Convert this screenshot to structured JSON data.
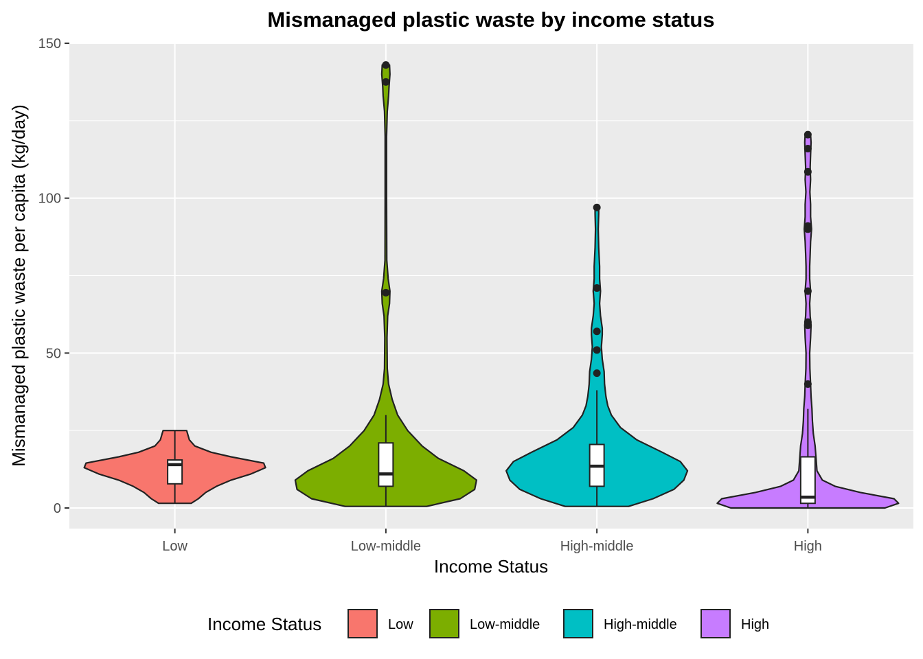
{
  "chart_data": {
    "type": "violin",
    "title": "Mismanaged plastic waste by income status",
    "xlabel": "Income Status",
    "ylabel": "Mismanaged plastic waste per capita (kg/day)",
    "ylim": [
      -6,
      150
    ],
    "yticks": [
      0,
      50,
      100,
      150
    ],
    "grid": true,
    "legend_position": "bottom",
    "legend_title": "Income Status",
    "categories": [
      "Low",
      "Low-middle",
      "High-middle",
      "High"
    ],
    "colors": [
      "#F8766D",
      "#7CAE00",
      "#00BFC4",
      "#C77CFF"
    ],
    "series": [
      {
        "name": "Low",
        "violin_range": [
          1.5,
          25
        ],
        "density_profile": [
          [
            1.5,
            0.18
          ],
          [
            3,
            0.26
          ],
          [
            5,
            0.34
          ],
          [
            7,
            0.46
          ],
          [
            9,
            0.62
          ],
          [
            11,
            0.84
          ],
          [
            13,
            1.0
          ],
          [
            14.5,
            0.98
          ],
          [
            16.5,
            0.62
          ],
          [
            18,
            0.4
          ],
          [
            20,
            0.22
          ],
          [
            22,
            0.16
          ],
          [
            24,
            0.14
          ],
          [
            25,
            0.13
          ]
        ],
        "box": {
          "q1": 7.8,
          "median": 14,
          "q3": 15.5,
          "whisker_low": 1.5,
          "whisker_high": 25
        },
        "outliers": []
      },
      {
        "name": "Low-middle",
        "violin_range": [
          0.5,
          143
        ],
        "density_profile": [
          [
            0.5,
            0.45
          ],
          [
            3,
            0.82
          ],
          [
            6,
            0.98
          ],
          [
            9,
            1.0
          ],
          [
            12,
            0.86
          ],
          [
            16,
            0.58
          ],
          [
            20,
            0.4
          ],
          [
            25,
            0.24
          ],
          [
            30,
            0.13
          ],
          [
            35,
            0.07
          ],
          [
            40,
            0.03
          ],
          [
            45,
            0.015
          ],
          [
            55,
            0.012
          ],
          [
            62,
            0.02
          ],
          [
            66,
            0.04
          ],
          [
            70,
            0.045
          ],
          [
            74,
            0.025
          ],
          [
            80,
            0.01
          ],
          [
            100,
            0.008
          ],
          [
            120,
            0.008
          ],
          [
            128,
            0.015
          ],
          [
            133,
            0.03
          ],
          [
            136,
            0.035
          ],
          [
            140,
            0.045
          ],
          [
            143,
            0.04
          ]
        ],
        "box": {
          "q1": 7,
          "median": 11,
          "q3": 21,
          "whisker_low": 0.5,
          "whisker_high": 30
        },
        "outliers": [
          143,
          137.5,
          69.5
        ]
      },
      {
        "name": "High-middle",
        "violin_range": [
          0.5,
          97
        ],
        "density_profile": [
          [
            0.5,
            0.35
          ],
          [
            3,
            0.62
          ],
          [
            6,
            0.85
          ],
          [
            9,
            0.96
          ],
          [
            12,
            1.0
          ],
          [
            15,
            0.92
          ],
          [
            18,
            0.72
          ],
          [
            22,
            0.44
          ],
          [
            26,
            0.26
          ],
          [
            30,
            0.16
          ],
          [
            33,
            0.12
          ],
          [
            36,
            0.1
          ],
          [
            40,
            0.085
          ],
          [
            44,
            0.08
          ],
          [
            48,
            0.06
          ],
          [
            52,
            0.05
          ],
          [
            56,
            0.06
          ],
          [
            58,
            0.06
          ],
          [
            62,
            0.04
          ],
          [
            66,
            0.03
          ],
          [
            70,
            0.04
          ],
          [
            74,
            0.03
          ],
          [
            78,
            0.03
          ],
          [
            84,
            0.02
          ],
          [
            90,
            0.015
          ],
          [
            95,
            0.02
          ],
          [
            97,
            0.02
          ]
        ],
        "box": {
          "q1": 7,
          "median": 13.5,
          "q3": 20.5,
          "whisker_low": 0.5,
          "whisker_high": 38
        },
        "outliers": [
          97,
          71,
          57,
          51,
          43.5
        ]
      },
      {
        "name": "High",
        "violin_range": [
          0,
          120.5
        ],
        "density_profile": [
          [
            0,
            0.85
          ],
          [
            1.5,
            1.0
          ],
          [
            3,
            0.95
          ],
          [
            5,
            0.58
          ],
          [
            7,
            0.3
          ],
          [
            9,
            0.16
          ],
          [
            12,
            0.1
          ],
          [
            16,
            0.09
          ],
          [
            20,
            0.08
          ],
          [
            24,
            0.06
          ],
          [
            28,
            0.05
          ],
          [
            32,
            0.045
          ],
          [
            36,
            0.035
          ],
          [
            40,
            0.03
          ],
          [
            45,
            0.022
          ],
          [
            50,
            0.02
          ],
          [
            55,
            0.03
          ],
          [
            59,
            0.035
          ],
          [
            62,
            0.025
          ],
          [
            66,
            0.02
          ],
          [
            70,
            0.03
          ],
          [
            74,
            0.02
          ],
          [
            78,
            0.02
          ],
          [
            82,
            0.025
          ],
          [
            86,
            0.03
          ],
          [
            90,
            0.04
          ],
          [
            94,
            0.03
          ],
          [
            98,
            0.03
          ],
          [
            102,
            0.022
          ],
          [
            106,
            0.03
          ],
          [
            110,
            0.025
          ],
          [
            114,
            0.03
          ],
          [
            118,
            0.035
          ],
          [
            120.5,
            0.03
          ]
        ],
        "box": {
          "q1": 1.5,
          "median": 3.5,
          "q3": 16.5,
          "whisker_low": 0,
          "whisker_high": 32
        },
        "outliers": [
          120.5,
          116,
          108.5,
          91,
          90,
          70,
          60,
          59,
          40
        ]
      }
    ]
  }
}
